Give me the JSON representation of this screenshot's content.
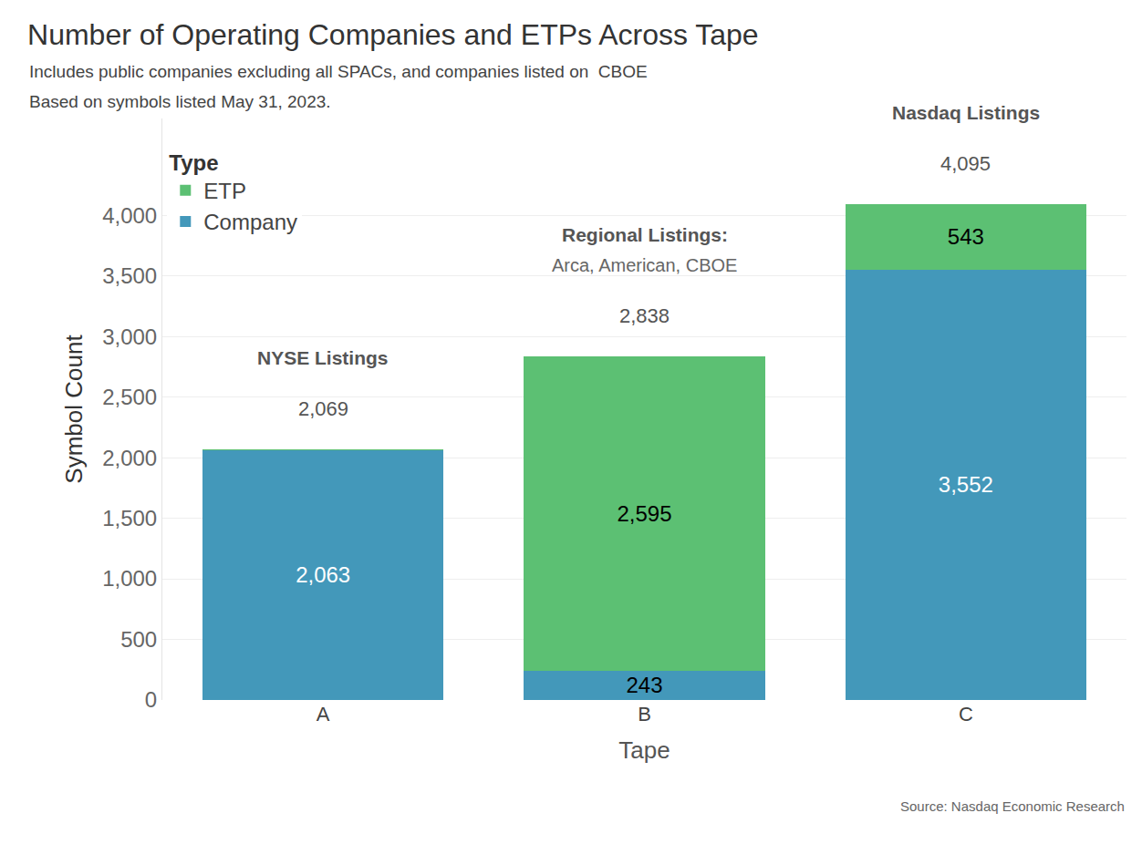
{
  "chart_data": {
    "type": "bar",
    "title": "Number of Operating Companies and ETPs Across Tape",
    "subtitle": [
      "Includes public companies excluding all SPACs, and companies listed on  CBOE",
      "Based on symbols listed May 31, 2023."
    ],
    "x_label": "Tape",
    "y_label": "Symbol Count",
    "source": "Source: Nasdaq Economic Research",
    "legend_title": "Type",
    "categories": [
      "A",
      "B",
      "C"
    ],
    "series": [
      {
        "name": "Company",
        "color": "#4398ba",
        "values": [
          2063,
          243,
          3552
        ],
        "value_labels": [
          "2,063",
          "243",
          "3,552"
        ]
      },
      {
        "name": "ETP",
        "color": "#5cc073",
        "values": [
          6,
          2595,
          543
        ],
        "value_labels": [
          null,
          "2,595",
          "543"
        ]
      }
    ],
    "totals": [
      2069,
      2838,
      4095
    ],
    "total_labels": [
      "2,069",
      "2,838",
      "4,095"
    ],
    "group_labels": [
      {
        "title": "NYSE Listings"
      },
      {
        "title": "Regional Listings:",
        "subtitle": "Arca, American, CBOE"
      },
      {
        "title": "Nasdaq Listings"
      }
    ],
    "stacked": true,
    "data_labels": true,
    "legend": "upper left",
    "grid": true,
    "ylim": [
      0,
      4800
    ],
    "yticks": [
      0,
      500,
      {
        "value": 1000,
        "label": "1,000"
      },
      {
        "value": 1500,
        "label": "1,500"
      },
      {
        "value": 2000,
        "label": "2,000"
      },
      {
        "value": 2500,
        "label": "2,500"
      },
      {
        "value": 3000,
        "label": "3,000"
      },
      {
        "value": 3500,
        "label": "3,500"
      },
      {
        "value": 4000,
        "label": "4,000"
      }
    ]
  }
}
